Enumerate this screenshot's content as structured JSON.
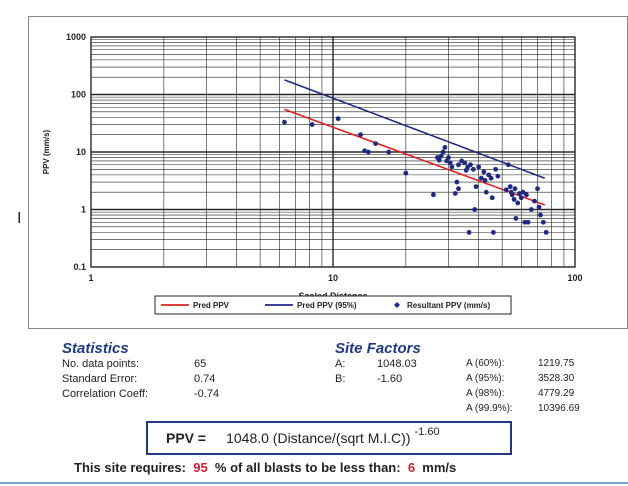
{
  "chart_data": {
    "type": "scatter",
    "x_scale": "log",
    "y_scale": "log",
    "xlim": [
      1,
      100
    ],
    "ylim": [
      0.1,
      1000
    ],
    "x_ticks": [
      "1",
      "10",
      "100"
    ],
    "y_ticks": [
      "0.1",
      "1",
      "10",
      "100",
      "1000"
    ],
    "xlabel": "Scaled Distance",
    "ylabel": "PPV (mm/s)",
    "grid": true,
    "legend_position": "bottom",
    "series": [
      {
        "name": "Pred PPV",
        "kind": "line",
        "color": "#dd2222",
        "x": [
          6.3,
          75
        ],
        "y": [
          55,
          1.2
        ]
      },
      {
        "name": "Pred PPV (95%)",
        "kind": "line",
        "color": "#1f2a80",
        "x": [
          6.3,
          75
        ],
        "y": [
          180,
          3.5
        ]
      },
      {
        "name": "Resultant PPV (mm/s)",
        "kind": "scatter",
        "color": "#1f2a80",
        "points": [
          [
            6.3,
            33
          ],
          [
            8.2,
            30
          ],
          [
            10.5,
            38
          ],
          [
            13,
            20
          ],
          [
            13.5,
            10.5
          ],
          [
            14,
            10
          ],
          [
            15,
            14
          ],
          [
            17,
            10
          ],
          [
            20,
            4.3
          ],
          [
            26,
            1.8
          ],
          [
            27,
            8
          ],
          [
            27.5,
            7.2
          ],
          [
            28,
            8.5
          ],
          [
            28.5,
            10
          ],
          [
            29,
            12
          ],
          [
            29.5,
            7
          ],
          [
            30,
            8
          ],
          [
            30.5,
            6.5
          ],
          [
            31,
            5.5
          ],
          [
            32,
            1.9
          ],
          [
            32.5,
            3
          ],
          [
            33,
            2.3
          ],
          [
            33,
            6
          ],
          [
            34,
            7
          ],
          [
            35,
            6.5
          ],
          [
            35.5,
            4.8
          ],
          [
            36,
            5.5
          ],
          [
            36.5,
            0.4
          ],
          [
            37,
            6
          ],
          [
            38,
            5
          ],
          [
            38.5,
            1.0
          ],
          [
            39,
            2.5
          ],
          [
            40,
            5.5
          ],
          [
            41,
            3.5
          ],
          [
            42,
            4.5
          ],
          [
            42.5,
            3.2
          ],
          [
            43,
            2.0
          ],
          [
            44,
            4.0
          ],
          [
            45,
            3.5
          ],
          [
            45.5,
            1.6
          ],
          [
            46,
            0.4
          ],
          [
            47,
            5
          ],
          [
            48,
            3.8
          ],
          [
            52,
            2.2
          ],
          [
            53,
            6
          ],
          [
            54,
            2.5
          ],
          [
            54.5,
            2.0
          ],
          [
            55,
            1.8
          ],
          [
            56,
            1.5
          ],
          [
            56.5,
            2.3
          ],
          [
            57,
            0.7
          ],
          [
            58,
            1.3
          ],
          [
            59,
            1.9
          ],
          [
            60,
            1.6
          ],
          [
            61,
            2.0
          ],
          [
            62,
            0.6
          ],
          [
            63,
            1.8
          ],
          [
            64,
            0.6
          ],
          [
            66,
            1.0
          ],
          [
            68,
            1.4
          ],
          [
            70,
            2.3
          ],
          [
            71,
            1.1
          ],
          [
            72,
            0.8
          ],
          [
            74,
            0.6
          ],
          [
            76,
            0.4
          ]
        ]
      }
    ]
  },
  "statistics": {
    "title": "Statistics",
    "rows": [
      {
        "label": "No. data points:",
        "value": "65"
      },
      {
        "label": "Standard Error:",
        "value": "0.74"
      },
      {
        "label": "Correlation Coeff:",
        "value": "-0.74"
      }
    ]
  },
  "site_factors": {
    "title": "Site Factors",
    "rows": [
      {
        "label": "A:",
        "value": "1048.03"
      },
      {
        "label": "B:",
        "value": "-1.60"
      }
    ],
    "a_values": [
      {
        "label": "A (60%):",
        "value": "1219.75"
      },
      {
        "label": "A (95%):",
        "value": "3528.30"
      },
      {
        "label": "A (98%):",
        "value": "4779.29"
      },
      {
        "label": "A (99.9%):",
        "value": "10396.69"
      }
    ]
  },
  "formula": {
    "lhs": "PPV =",
    "rhs": "1048.0  (Distance/(sqrt M.I.C))",
    "exponent": "-1.60"
  },
  "requirement": {
    "prefix": "This site requires:",
    "percent": "95",
    "middle": "% of all blasts to be less than:",
    "limit": "6",
    "unit": "mm/s"
  },
  "cursor_text": "I"
}
